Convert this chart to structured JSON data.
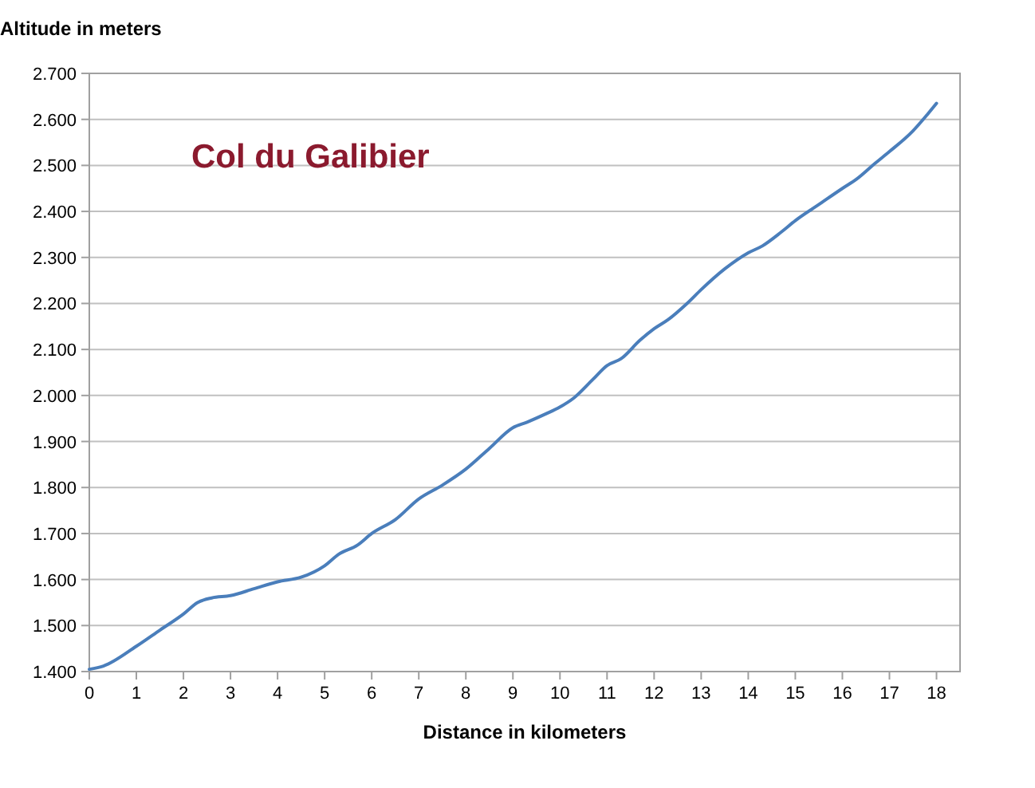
{
  "chart_data": {
    "type": "line",
    "annotations": [
      "Col du Galibier"
    ],
    "xlabel": "Distance in kilometers",
    "ylabel": "Altitude in meters",
    "series": [
      {
        "color": "#4a7ebb",
        "x": [
          0,
          0.3,
          1,
          1.5,
          2,
          2.3,
          2.6,
          3,
          3.5,
          4,
          4.5,
          5,
          5.3,
          5.7,
          6,
          6.5,
          7,
          7.5,
          8,
          8.5,
          9,
          9.3,
          9.7,
          10,
          10.3,
          10.7,
          11,
          11.3,
          11.7,
          12,
          12.3,
          12.7,
          13,
          13.5,
          14,
          14.3,
          14.7,
          15,
          15.5,
          16,
          16.3,
          16.7,
          17,
          17.5,
          17.8,
          18
        ],
        "values": [
          1405,
          1412,
          1455,
          1490,
          1525,
          1550,
          1560,
          1565,
          1580,
          1595,
          1605,
          1630,
          1655,
          1675,
          1700,
          1730,
          1775,
          1805,
          1840,
          1885,
          1930,
          1942,
          1960,
          1975,
          1995,
          2035,
          2065,
          2080,
          2120,
          2145,
          2165,
          2200,
          2230,
          2275,
          2310,
          2325,
          2355,
          2380,
          2415,
          2450,
          2470,
          2505,
          2530,
          2575,
          2610,
          2635
        ]
      }
    ],
    "xlim": [
      0,
      18.5
    ],
    "xticks": [
      0,
      1,
      2,
      3,
      4,
      5,
      6,
      7,
      8,
      9,
      10,
      11,
      12,
      13,
      14,
      15,
      16,
      17,
      18
    ],
    "ylim": [
      1400,
      2700
    ],
    "yticks": [
      {
        "value": 1400,
        "label": "1.400"
      },
      {
        "value": 1500,
        "label": "1.500"
      },
      {
        "value": 1600,
        "label": "1.600"
      },
      {
        "value": 1700,
        "label": "1.700"
      },
      {
        "value": 1800,
        "label": "1.800"
      },
      {
        "value": 1900,
        "label": "1.900"
      },
      {
        "value": 2000,
        "label": "2.000"
      },
      {
        "value": 2100,
        "label": "2.100"
      },
      {
        "value": 2200,
        "label": "2.200"
      },
      {
        "value": 2300,
        "label": "2.300"
      },
      {
        "value": 2400,
        "label": "2.400"
      },
      {
        "value": 2500,
        "label": "2.500"
      },
      {
        "value": 2600,
        "label": "2.600"
      },
      {
        "value": 2700,
        "label": "2.700"
      }
    ],
    "grid": "y",
    "line_style": "solid"
  }
}
